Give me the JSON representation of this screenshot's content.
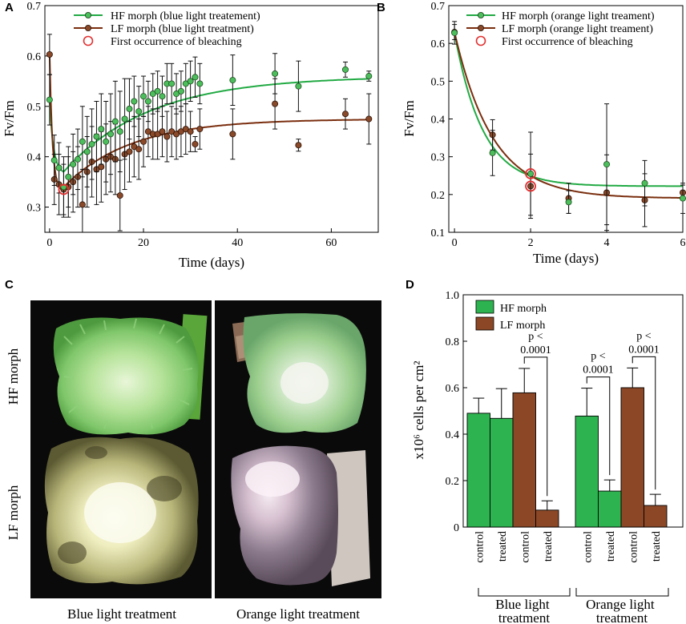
{
  "colors": {
    "hf_line": "#22aa44",
    "lf_line": "#7a2e0e",
    "hf_marker": "#4cbf5c",
    "lf_marker": "#8a4a2a",
    "hf_bar": "#2db34f",
    "lf_bar": "#8c4726",
    "bleach": "#e23030",
    "photo_bg": "#0a0a0a"
  },
  "panels": {
    "a": "A",
    "b": "B",
    "c": "C",
    "d": "D"
  },
  "photos": {
    "row_hf": "HF morph",
    "row_lf": "LF morph",
    "col_blue": "Blue light treatment",
    "col_orange": "Orange light treatment"
  },
  "chart_data": [
    {
      "id": "A",
      "type": "line",
      "xlabel": "Time (days)",
      "ylabel": "Fv/Fm",
      "xlim": [
        -1,
        70
      ],
      "ylim": [
        0.25,
        0.7
      ],
      "xticks": [
        0,
        20,
        40,
        60
      ],
      "yticks": [
        0.3,
        0.4,
        0.5,
        0.6,
        0.7
      ],
      "legend": [
        "HF morph (blue light treatement)",
        "LF morph (blue light treatment)",
        "First occurrence of bleaching"
      ],
      "bleaching": {
        "x": 3,
        "y": 0.335
      },
      "series": [
        {
          "name": "HF morph (blue light treatement)",
          "points": [
            [
              0,
              0.513,
              0.05
            ],
            [
              1,
              0.393,
              0.05
            ],
            [
              2,
              0.378,
              0.05
            ],
            [
              3,
              0.34,
              0.06
            ],
            [
              4,
              0.36,
              0.06
            ],
            [
              5,
              0.385,
              0.06
            ],
            [
              6,
              0.395,
              0.06
            ],
            [
              7,
              0.43,
              0.07
            ],
            [
              8,
              0.41,
              0.07
            ],
            [
              9,
              0.425,
              0.07
            ],
            [
              10,
              0.44,
              0.07
            ],
            [
              11,
              0.455,
              0.07
            ],
            [
              12,
              0.43,
              0.08
            ],
            [
              13,
              0.445,
              0.08
            ],
            [
              14,
              0.47,
              0.08
            ],
            [
              15,
              0.45,
              0.08
            ],
            [
              16,
              0.475,
              0.08
            ],
            [
              17,
              0.495,
              0.06
            ],
            [
              18,
              0.51,
              0.05
            ],
            [
              19,
              0.49,
              0.05
            ],
            [
              20,
              0.52,
              0.04
            ],
            [
              21,
              0.51,
              0.04
            ],
            [
              22,
              0.525,
              0.04
            ],
            [
              23,
              0.53,
              0.04
            ],
            [
              24,
              0.52,
              0.04
            ],
            [
              25,
              0.545,
              0.04
            ],
            [
              26,
              0.545,
              0.04
            ],
            [
              27,
              0.525,
              0.04
            ],
            [
              28,
              0.53,
              0.04
            ],
            [
              29,
              0.545,
              0.04
            ],
            [
              30,
              0.55,
              0.04
            ],
            [
              31,
              0.558,
              0.04
            ],
            [
              32,
              0.545,
              0.04
            ],
            [
              39,
              0.552,
              0.05
            ],
            [
              48,
              0.565,
              0.04
            ],
            [
              53,
              0.54,
              0.05
            ],
            [
              63,
              0.573,
              0.015
            ],
            [
              68,
              0.56,
              0.01
            ]
          ],
          "fit": {
            "a": 0.48,
            "s0": 0.59,
            "amp": 0.28,
            "k1": 0.55,
            "s": 0.56,
            "k2": 0.055
          }
        },
        {
          "name": "LF morph (blue light treatment)",
          "points": [
            [
              0,
              0.603,
              0.04
            ],
            [
              1,
              0.355,
              0.05
            ],
            [
              2,
              0.345,
              0.06
            ],
            [
              3,
              0.335,
              0.05
            ],
            [
              4,
              0.34,
              0.06
            ],
            [
              5,
              0.35,
              0.06
            ],
            [
              6,
              0.36,
              0.06
            ],
            [
              7,
              0.305,
              0.07
            ],
            [
              8,
              0.37,
              0.07
            ],
            [
              9,
              0.39,
              0.07
            ],
            [
              10,
              0.375,
              0.07
            ],
            [
              11,
              0.38,
              0.07
            ],
            [
              12,
              0.395,
              0.07
            ],
            [
              13,
              0.4,
              0.07
            ],
            [
              14,
              0.395,
              0.07
            ],
            [
              15,
              0.323,
              0.07
            ],
            [
              16,
              0.405,
              0.07
            ],
            [
              17,
              0.41,
              0.06
            ],
            [
              18,
              0.42,
              0.06
            ],
            [
              19,
              0.415,
              0.06
            ],
            [
              20,
              0.43,
              0.05
            ],
            [
              21,
              0.45,
              0.05
            ],
            [
              22,
              0.445,
              0.05
            ],
            [
              23,
              0.445,
              0.05
            ],
            [
              24,
              0.45,
              0.05
            ],
            [
              25,
              0.44,
              0.05
            ],
            [
              26,
              0.45,
              0.05
            ],
            [
              27,
              0.445,
              0.05
            ],
            [
              28,
              0.45,
              0.05
            ],
            [
              29,
              0.455,
              0.05
            ],
            [
              30,
              0.45,
              0.04
            ],
            [
              31,
              0.425,
              0.015
            ],
            [
              32,
              0.455,
              0.04
            ],
            [
              39,
              0.445,
              0.05
            ],
            [
              48,
              0.505,
              0.05
            ],
            [
              53,
              0.423,
              0.012
            ],
            [
              63,
              0.485,
              0.03
            ],
            [
              68,
              0.475,
              0.05
            ]
          ],
          "fit": {
            "a": 0.6,
            "s0": 0.6,
            "amp": 0.3,
            "k1": 0.9,
            "s": 0.475,
            "k2": 0.07
          }
        }
      ]
    },
    {
      "id": "B",
      "type": "line",
      "xlabel": "Time (days)",
      "ylabel": "Fv/Fm",
      "xlim": [
        -0.15,
        6
      ],
      "ylim": [
        0.1,
        0.7
      ],
      "xticks": [
        0,
        2,
        4,
        6
      ],
      "yticks": [
        0.1,
        0.2,
        0.3,
        0.4,
        0.5,
        0.6,
        0.7
      ],
      "legend": [
        "HF morph (orange light treament)",
        "LF morph (orange light treament)",
        "First occurrence of bleaching"
      ],
      "bleaching": [
        {
          "x": 2,
          "y": 0.255
        },
        {
          "x": 2,
          "y": 0.222
        }
      ],
      "series": [
        {
          "name": "HF morph (orange light treament)",
          "points": [
            [
              0,
              0.628,
              0.03
            ],
            [
              1,
              0.31,
              0.06
            ],
            [
              2,
              0.255,
              0.11
            ],
            [
              3,
              0.18,
              0.03
            ],
            [
              4,
              0.28,
              0.16
            ],
            [
              5,
              0.23,
              0.06
            ],
            [
              6,
              0.19,
              0.04
            ]
          ],
          "fit": {
            "plateau": 0.222,
            "k": 1.35
          }
        },
        {
          "name": "LF morph (orange light treament)",
          "points": [
            [
              0,
              0.63,
              0.02
            ],
            [
              1,
              0.358,
              0.04
            ],
            [
              2,
              0.222,
              0.085
            ],
            [
              3,
              0.19,
              0.04
            ],
            [
              4,
              0.205,
              0.1
            ],
            [
              5,
              0.185,
              0.07
            ],
            [
              6,
              0.205,
              0.02
            ]
          ],
          "fit": {
            "plateau": 0.19,
            "k": 1.0
          }
        }
      ]
    },
    {
      "id": "D",
      "type": "bar",
      "ylabel": "x10⁶ cells per cm²",
      "ylim": [
        0,
        1.0
      ],
      "yticks": [
        0,
        0.2,
        0.4,
        0.6,
        0.8,
        1.0
      ],
      "legend": [
        "HF morph",
        "LF morph"
      ],
      "categories": [
        "control",
        "treated",
        "control",
        "treated",
        "control",
        "treated",
        "control",
        "treated"
      ],
      "morph": [
        "HF",
        "HF",
        "LF",
        "LF",
        "HF",
        "HF",
        "LF",
        "LF"
      ],
      "values": [
        0.49,
        0.468,
        0.578,
        0.073,
        0.478,
        0.155,
        0.6,
        0.093
      ],
      "errors": [
        0.065,
        0.128,
        0.105,
        0.04,
        0.12,
        0.048,
        0.085,
        0.048
      ],
      "groups": [
        "Blue light treatment",
        "Orange light treatment"
      ],
      "annotations": [
        {
          "p1": "p <",
          "p2": "0.0001",
          "from": 2,
          "to": 3
        },
        {
          "p1": "p <",
          "p2": "0.0001",
          "from": 4,
          "to": 5
        },
        {
          "p1": "p <",
          "p2": "0.0001",
          "from": 6,
          "to": 7
        }
      ]
    }
  ]
}
